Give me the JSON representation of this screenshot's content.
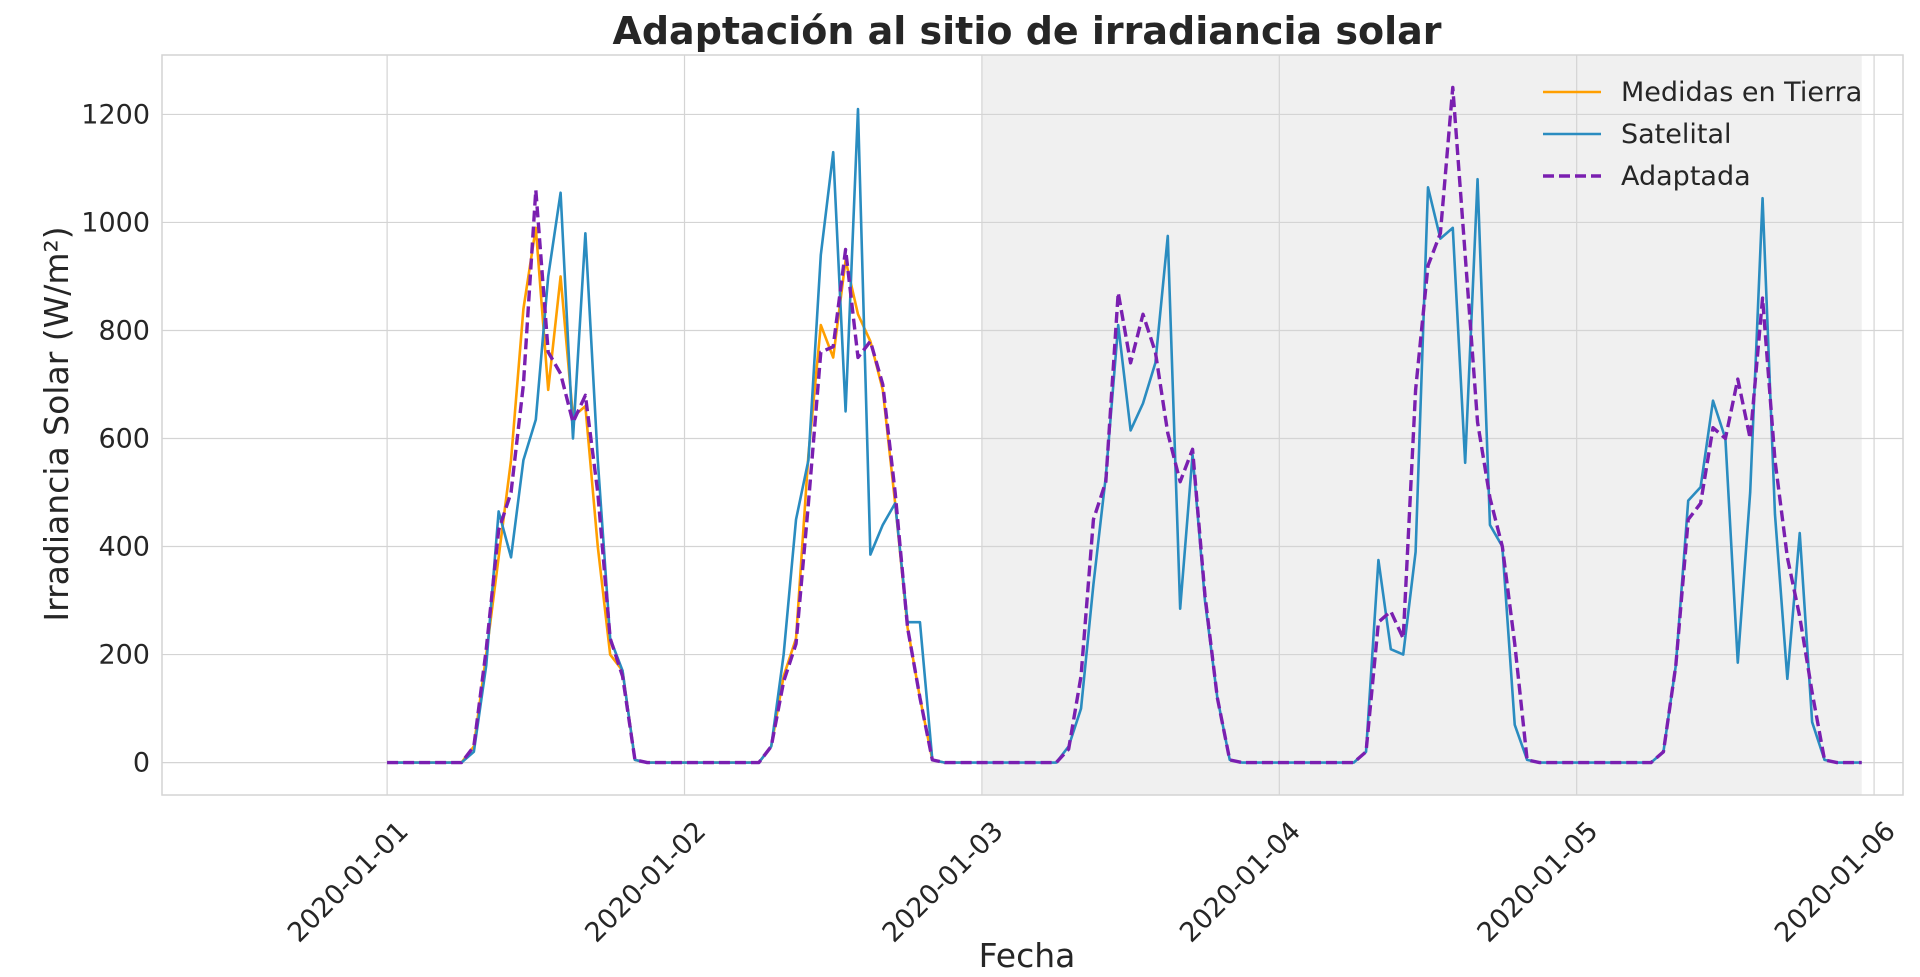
{
  "chart_data": {
    "type": "line",
    "title": "Adaptación al sitio de irradiancia solar",
    "xlabel": "Fecha",
    "ylabel": "Irradiancia Solar (W/m²)",
    "x_start": "2020-01-01 00:00",
    "x_step_hours": 1,
    "xlim": [
      "2019-12-31 05:50",
      "2020-01-06 02:20"
    ],
    "ylim": [
      -60,
      1310
    ],
    "x_ticks": [
      "2020-01-01",
      "2020-01-02",
      "2020-01-03",
      "2020-01-04",
      "2020-01-05",
      "2020-01-06"
    ],
    "y_ticks": [
      0,
      200,
      400,
      600,
      800,
      1000,
      1200
    ],
    "grid": true,
    "legend_position": "top-right",
    "shaded_region": {
      "from": "2020-01-03 00:00",
      "to": "2020-01-05 23:00",
      "color": "#f0f0f0"
    },
    "series": [
      {
        "name": "Medidas en Tierra",
        "color": "#ff9f00",
        "style": "solid",
        "values": [
          0,
          0,
          0,
          0,
          0,
          0,
          0,
          30,
          200,
          380,
          560,
          840,
          990,
          690,
          900,
          640,
          660,
          400,
          200,
          170,
          5,
          0,
          0,
          0,
          0,
          0,
          0,
          0,
          0,
          0,
          0,
          30,
          160,
          230,
          570,
          810,
          750,
          930,
          830,
          780,
          690,
          480,
          250,
          120,
          5,
          0,
          0,
          0
        ]
      },
      {
        "name": "Satelital",
        "color": "#2a8cc0",
        "style": "solid",
        "values": [
          0,
          0,
          0,
          0,
          0,
          0,
          0,
          20,
          180,
          465,
          380,
          560,
          635,
          900,
          1055,
          600,
          980,
          560,
          230,
          170,
          5,
          0,
          0,
          0,
          0,
          0,
          0,
          0,
          0,
          0,
          0,
          30,
          200,
          450,
          560,
          940,
          1130,
          650,
          1210,
          385,
          440,
          480,
          260,
          260,
          5,
          0,
          0,
          0,
          0,
          0,
          0,
          0,
          0,
          0,
          0,
          30,
          100,
          330,
          530,
          810,
          615,
          665,
          740,
          975,
          285,
          570,
          300,
          120,
          5,
          0,
          0,
          0,
          0,
          0,
          0,
          0,
          0,
          0,
          0,
          20,
          375,
          210,
          200,
          390,
          1065,
          970,
          990,
          555,
          1080,
          440,
          400,
          70,
          5,
          0,
          0,
          0,
          0,
          0,
          0,
          0,
          0,
          0,
          0,
          20,
          180,
          485,
          510,
          670,
          600,
          185,
          500,
          1045,
          460,
          155,
          425,
          75,
          5,
          0,
          0,
          0
        ]
      },
      {
        "name": "Adaptada",
        "color": "#7a1fb0",
        "style": "dashed",
        "values": [
          0,
          0,
          0,
          0,
          0,
          0,
          0,
          30,
          210,
          430,
          500,
          700,
          1060,
          760,
          720,
          630,
          680,
          500,
          230,
          160,
          5,
          0,
          0,
          0,
          0,
          0,
          0,
          0,
          0,
          0,
          0,
          30,
          150,
          220,
          480,
          760,
          770,
          950,
          750,
          780,
          700,
          500,
          250,
          120,
          5,
          0,
          0,
          0,
          0,
          0,
          0,
          0,
          0,
          0,
          0,
          25,
          160,
          450,
          520,
          870,
          740,
          830,
          760,
          610,
          520,
          580,
          310,
          120,
          5,
          0,
          0,
          0,
          0,
          0,
          0,
          0,
          0,
          0,
          0,
          20,
          260,
          280,
          230,
          690,
          920,
          980,
          1250,
          940,
          630,
          490,
          400,
          220,
          5,
          0,
          0,
          0,
          0,
          0,
          0,
          0,
          0,
          0,
          0,
          20,
          180,
          450,
          480,
          620,
          600,
          710,
          600,
          860,
          560,
          380,
          270,
          130,
          5,
          0,
          0,
          0
        ]
      }
    ]
  }
}
